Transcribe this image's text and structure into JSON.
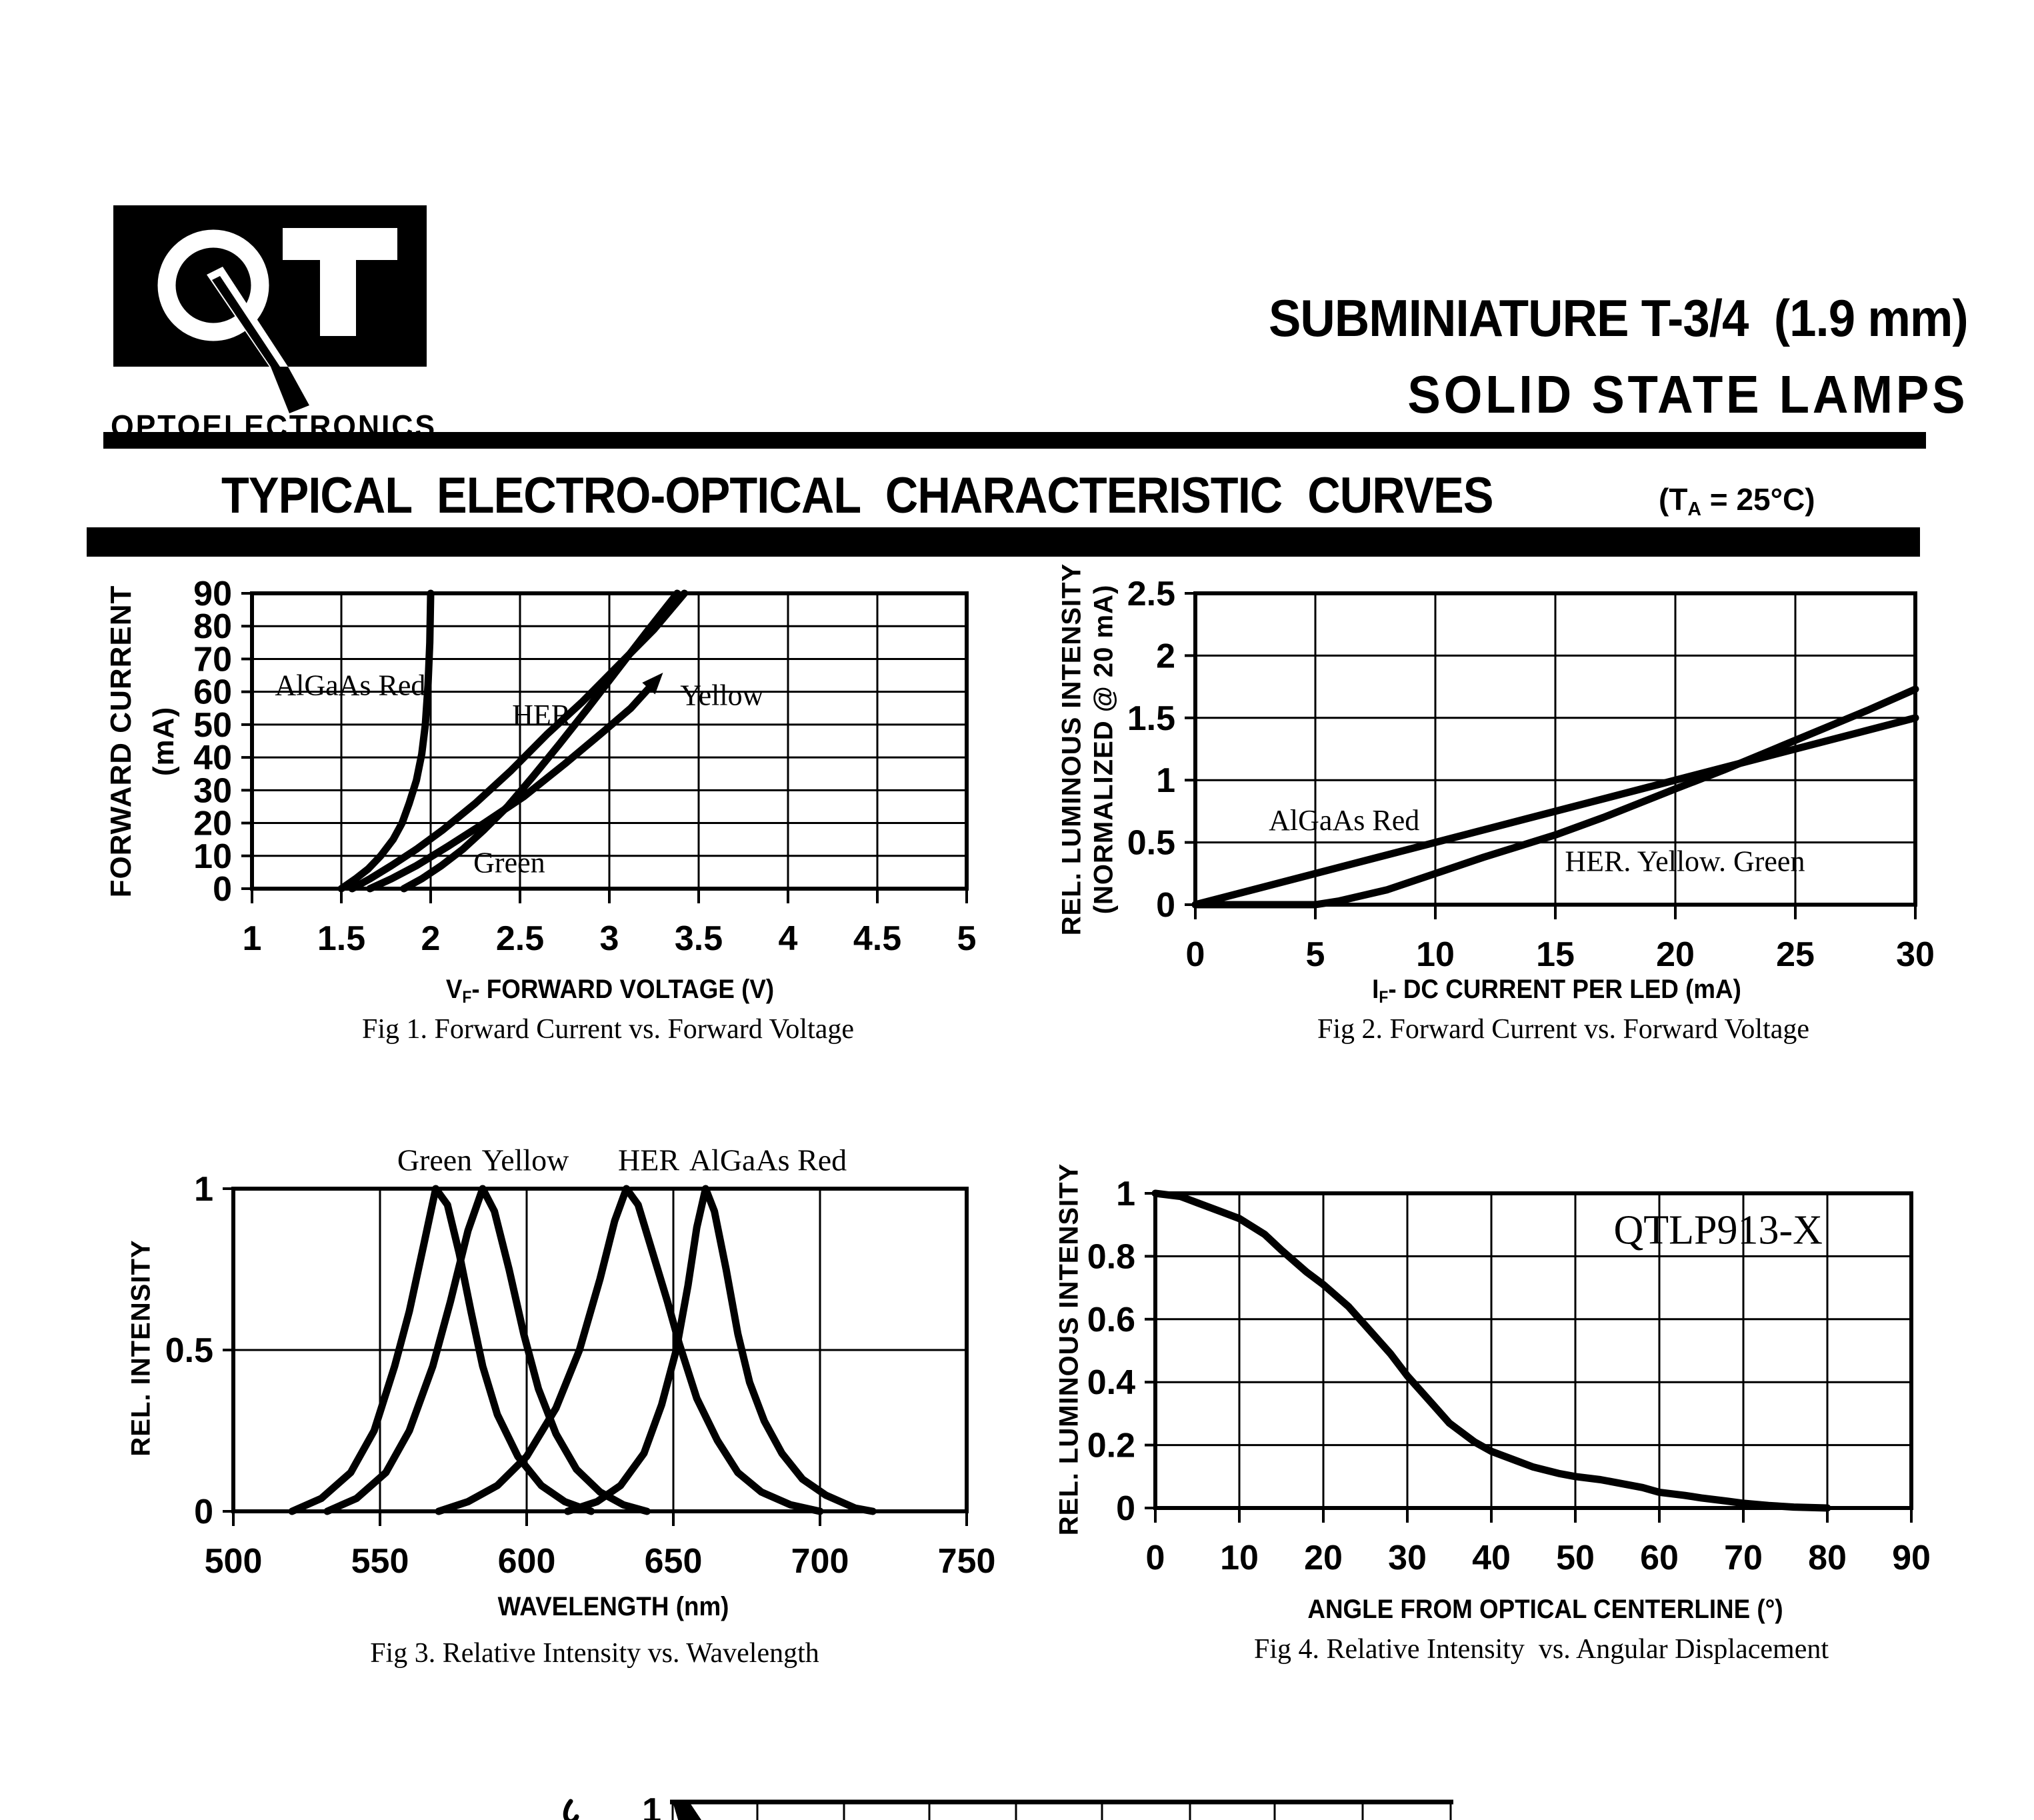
{
  "brand": {
    "logo_text": "QT",
    "sub_text": "OPTOELECTRONICS"
  },
  "header": {
    "title_line1": "SUBMINIATURE T-3/4  (1.9 mm)",
    "title_line2": "SOLID STATE LAMPS",
    "headline": "TYPICAL ELECTRO-OPTICAL CHARACTERISTIC CURVES",
    "temp_pre": "(T",
    "temp_sub": "A",
    "temp_rest": " = 25°C)"
  },
  "figures": [
    {
      "id": "fig1",
      "ylabel_lines": [
        "FORWARD CURRENT",
        "(mA)"
      ],
      "xlabel": {
        "pre": "V",
        "sub": "F",
        "rest": "- FORWARD VOLTAGE (V)"
      },
      "caption": "Fig 1. Forward Current vs. Forward Voltage",
      "chart_data": {
        "type": "line",
        "xlabel": "VF - FORWARD VOLTAGE (V)",
        "ylabel": "FORWARD CURRENT (mA)",
        "xlim": [
          1,
          5
        ],
        "ylim": [
          0,
          90
        ],
        "x_ticks": [
          "1",
          "1.5",
          "2",
          "2.5",
          "3",
          "3.5",
          "4",
          "4.5",
          "5"
        ],
        "y_ticks": [
          "0",
          "10",
          "20",
          "30",
          "40",
          "50",
          "60",
          "70",
          "80",
          "90"
        ],
        "grid_x": [
          1.5,
          2,
          2.5,
          3,
          3.5,
          4,
          4.5
        ],
        "grid_y": [
          10,
          20,
          30,
          40,
          50,
          60,
          70,
          80
        ],
        "series": [
          {
            "name": "AlGaAs Red",
            "points": [
              [
                1.5,
                0
              ],
              [
                1.58,
                3
              ],
              [
                1.65,
                6
              ],
              [
                1.72,
                10
              ],
              [
                1.79,
                15
              ],
              [
                1.84,
                20
              ],
              [
                1.88,
                26
              ],
              [
                1.92,
                33
              ],
              [
                1.95,
                41
              ],
              [
                1.97,
                50
              ],
              [
                1.985,
                62
              ],
              [
                1.995,
                75
              ],
              [
                2.0,
                90
              ]
            ]
          },
          {
            "name": "HER",
            "points": [
              [
                1.56,
                0
              ],
              [
                1.66,
                3
              ],
              [
                1.78,
                7
              ],
              [
                1.92,
                12
              ],
              [
                2.07,
                18
              ],
              [
                2.25,
                26
              ],
              [
                2.45,
                36
              ],
              [
                2.65,
                47
              ],
              [
                2.85,
                57
              ],
              [
                3.05,
                68
              ],
              [
                3.25,
                79
              ],
              [
                3.42,
                90
              ]
            ]
          },
          {
            "name": "Yellow",
            "arrow_end": true,
            "points": [
              [
                1.66,
                0
              ],
              [
                1.78,
                3
              ],
              [
                1.92,
                7
              ],
              [
                2.1,
                13
              ],
              [
                2.3,
                20
              ],
              [
                2.52,
                28
              ],
              [
                2.75,
                38
              ],
              [
                2.97,
                48
              ],
              [
                3.12,
                55
              ],
              [
                3.22,
                61
              ]
            ]
          },
          {
            "name": "Green",
            "points": [
              [
                1.85,
                0
              ],
              [
                1.95,
                3
              ],
              [
                2.06,
                7
              ],
              [
                2.18,
                12
              ],
              [
                2.3,
                18
              ],
              [
                2.43,
                25
              ],
              [
                2.57,
                34
              ],
              [
                2.72,
                44
              ],
              [
                2.88,
                55
              ],
              [
                3.05,
                67
              ],
              [
                3.22,
                79
              ],
              [
                3.38,
                90
              ]
            ]
          }
        ],
        "annotations": [
          {
            "text": "AlGaAs Red",
            "x": 1.55,
            "y": 59,
            "size": 44
          },
          {
            "text": "HER",
            "x": 2.62,
            "y": 50,
            "size": 44
          },
          {
            "text": "Yellow",
            "x": 3.63,
            "y": 56,
            "size": 44
          },
          {
            "text": "Green",
            "x": 2.44,
            "y": 5,
            "size": 44
          }
        ]
      }
    },
    {
      "id": "fig2",
      "ylabel_lines": [
        "REL. LUMINOUS INTENSITY",
        "(NORMALIZED @ 20 mA)"
      ],
      "xlabel": {
        "pre": "I",
        "sub": "F",
        "rest": "- DC CURRENT PER LED (mA)"
      },
      "caption": "Fig 2. Forward Current vs. Forward Voltage",
      "chart_data": {
        "type": "line",
        "xlabel": "IF - DC CURRENT PER LED (mA)",
        "ylabel": "REL. LUMINOUS INTENSITY (NORMALIZED @ 20 mA)",
        "xlim": [
          0,
          30
        ],
        "ylim": [
          0,
          2.5
        ],
        "x_ticks": [
          "0",
          "5",
          "10",
          "15",
          "20",
          "25",
          "30"
        ],
        "y_ticks": [
          "0",
          "0.5",
          "1",
          "1.5",
          "2",
          "2.5"
        ],
        "grid_x": [
          5,
          10,
          15,
          20,
          25
        ],
        "grid_y": [
          0.5,
          1,
          1.5,
          2
        ],
        "series": [
          {
            "name": "AlGaAs Red",
            "points": [
              [
                0,
                0
              ],
              [
                30,
                1.5
              ]
            ]
          },
          {
            "name": "HER. Yellow. Green",
            "points": [
              [
                0,
                0
              ],
              [
                5,
                0
              ],
              [
                6,
                0.03
              ],
              [
                8,
                0.12
              ],
              [
                10,
                0.25
              ],
              [
                12,
                0.38
              ],
              [
                15,
                0.56
              ],
              [
                17,
                0.7
              ],
              [
                20,
                0.93
              ],
              [
                22,
                1.08
              ],
              [
                24,
                1.24
              ],
              [
                26,
                1.4
              ],
              [
                28,
                1.56
              ],
              [
                30,
                1.73
              ]
            ]
          }
        ],
        "annotations": [
          {
            "text": "AlGaAs Red",
            "x": 6.2,
            "y": 0.6,
            "size": 44
          },
          {
            "text": "HER. Yellow. Green",
            "x": 20.4,
            "y": 0.27,
            "size": 44
          }
        ]
      }
    },
    {
      "id": "fig3",
      "ylabel_lines": [
        "REL. INTENSITY"
      ],
      "xlabel": {
        "pre": "WAVELENGTH (nm)",
        "sub": "",
        "rest": ""
      },
      "caption": "Fig 3. Relative Intensity vs. Wavelength",
      "series_header": [
        "Green",
        "Yellow",
        "HER",
        "AlGaAs Red"
      ],
      "chart_data": {
        "type": "line",
        "xlabel": "WAVELENGTH (nm)",
        "ylabel": "REL. INTENSITY",
        "xlim": [
          500,
          750
        ],
        "ylim": [
          0,
          1
        ],
        "x_ticks": [
          "500",
          "550",
          "600",
          "650",
          "700",
          "750"
        ],
        "y_ticks": [
          "0",
          "0.5",
          "1"
        ],
        "grid_x": [
          550,
          600,
          650,
          700
        ],
        "grid_y": [
          0.5
        ],
        "series": [
          {
            "name": "Green",
            "points": [
              [
                520,
                0
              ],
              [
                530,
                0.04
              ],
              [
                540,
                0.12
              ],
              [
                548,
                0.25
              ],
              [
                555,
                0.45
              ],
              [
                560,
                0.62
              ],
              [
                565,
                0.83
              ],
              [
                569,
                1.0
              ],
              [
                573,
                0.95
              ],
              [
                577,
                0.8
              ],
              [
                581,
                0.62
              ],
              [
                585,
                0.45
              ],
              [
                590,
                0.3
              ],
              [
                597,
                0.17
              ],
              [
                605,
                0.08
              ],
              [
                613,
                0.03
              ],
              [
                622,
                0
              ]
            ]
          },
          {
            "name": "Yellow",
            "points": [
              [
                532,
                0
              ],
              [
                542,
                0.04
              ],
              [
                552,
                0.12
              ],
              [
                560,
                0.25
              ],
              [
                568,
                0.45
              ],
              [
                574,
                0.65
              ],
              [
                580,
                0.87
              ],
              [
                585,
                1.0
              ],
              [
                589,
                0.93
              ],
              [
                594,
                0.75
              ],
              [
                599,
                0.55
              ],
              [
                604,
                0.38
              ],
              [
                610,
                0.24
              ],
              [
                617,
                0.13
              ],
              [
                625,
                0.06
              ],
              [
                633,
                0.02
              ],
              [
                641,
                0
              ]
            ]
          },
          {
            "name": "HER",
            "points": [
              [
                570,
                0
              ],
              [
                580,
                0.03
              ],
              [
                590,
                0.08
              ],
              [
                600,
                0.17
              ],
              [
                610,
                0.32
              ],
              [
                618,
                0.5
              ],
              [
                625,
                0.72
              ],
              [
                630,
                0.9
              ],
              [
                634,
                1.0
              ],
              [
                638,
                0.95
              ],
              [
                643,
                0.8
              ],
              [
                648,
                0.65
              ],
              [
                652,
                0.52
              ],
              [
                658,
                0.35
              ],
              [
                665,
                0.22
              ],
              [
                672,
                0.12
              ],
              [
                680,
                0.06
              ],
              [
                690,
                0.02
              ],
              [
                700,
                0
              ]
            ]
          },
          {
            "name": "AlGaAs Red",
            "points": [
              [
                614,
                0
              ],
              [
                624,
                0.03
              ],
              [
                632,
                0.08
              ],
              [
                640,
                0.18
              ],
              [
                646,
                0.33
              ],
              [
                651,
                0.5
              ],
              [
                655,
                0.7
              ],
              [
                658,
                0.88
              ],
              [
                661,
                1.0
              ],
              [
                664,
                0.93
              ],
              [
                668,
                0.75
              ],
              [
                672,
                0.55
              ],
              [
                676,
                0.4
              ],
              [
                681,
                0.28
              ],
              [
                687,
                0.18
              ],
              [
                694,
                0.1
              ],
              [
                702,
                0.05
              ],
              [
                712,
                0.01
              ],
              [
                718,
                0
              ]
            ]
          }
        ],
        "annotations": []
      }
    },
    {
      "id": "fig4",
      "ylabel_lines": [
        "REL. LUMINOUS INTENSITY"
      ],
      "xlabel": {
        "pre": "ANGLE FROM OPTICAL CENTERLINE (°)",
        "sub": "",
        "rest": ""
      },
      "caption": "Fig 4. Relative Intensity  vs. Angular Displacement",
      "chart_data": {
        "type": "line",
        "xlabel": "ANGLE FROM OPTICAL CENTERLINE (°)",
        "ylabel": "REL. LUMINOUS INTENSITY",
        "xlim": [
          0,
          90
        ],
        "ylim": [
          0,
          1
        ],
        "x_ticks": [
          "0",
          "10",
          "20",
          "30",
          "40",
          "50",
          "60",
          "70",
          "80",
          "90"
        ],
        "y_ticks": [
          "0",
          "0.2",
          "0.4",
          "0.6",
          "0.8",
          "1"
        ],
        "grid_x": [
          10,
          20,
          30,
          40,
          50,
          60,
          70,
          80
        ],
        "grid_y": [
          0.2,
          0.4,
          0.6,
          0.8
        ],
        "series": [
          {
            "name": "QTLP913-X",
            "points": [
              [
                0,
                1
              ],
              [
                3,
                0.99
              ],
              [
                5,
                0.97
              ],
              [
                8,
                0.94
              ],
              [
                10,
                0.92
              ],
              [
                13,
                0.87
              ],
              [
                15,
                0.82
              ],
              [
                18,
                0.75
              ],
              [
                20,
                0.71
              ],
              [
                23,
                0.64
              ],
              [
                25,
                0.58
              ],
              [
                28,
                0.49
              ],
              [
                30,
                0.42
              ],
              [
                33,
                0.33
              ],
              [
                35,
                0.27
              ],
              [
                38,
                0.21
              ],
              [
                40,
                0.18
              ],
              [
                43,
                0.15
              ],
              [
                45,
                0.13
              ],
              [
                48,
                0.11
              ],
              [
                50,
                0.1
              ],
              [
                53,
                0.09
              ],
              [
                55,
                0.08
              ],
              [
                58,
                0.065
              ],
              [
                60,
                0.05
              ],
              [
                63,
                0.04
              ],
              [
                65,
                0.032
              ],
              [
                68,
                0.022
              ],
              [
                70,
                0.015
              ],
              [
                73,
                0.008
              ],
              [
                76,
                0.003
              ],
              [
                80,
                0
              ]
            ]
          }
        ],
        "annotations": [
          {
            "text": "QTLP913-X",
            "x": 67,
            "y": 0.84,
            "size": 62
          }
        ]
      }
    }
  ],
  "partial_chart": {
    "y_tick": "1"
  }
}
